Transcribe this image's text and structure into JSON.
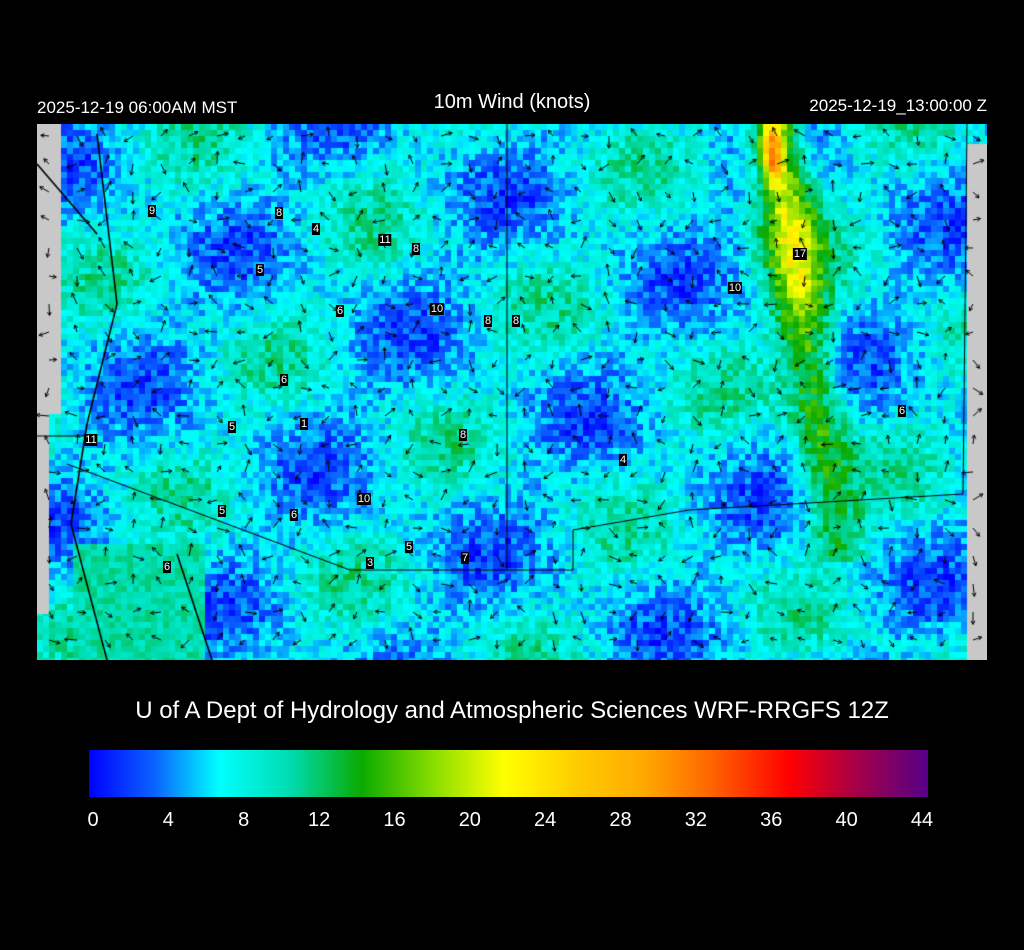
{
  "header": {
    "local_time": "2025-12-19 06:00AM MST",
    "title": "10m Wind (knots)",
    "valid_time": "2025-12-19_13:00:00 Z"
  },
  "footer": "U of A Dept of Hydrology and Atmospheric Sciences WRF-RRGFS 12Z",
  "colorbar": {
    "ticks": [
      "0",
      "4",
      "8",
      "12",
      "16",
      "20",
      "24",
      "28",
      "32",
      "36",
      "40",
      "44"
    ],
    "range": [
      0,
      44
    ],
    "colors": [
      "#0000ff",
      "#00ffff",
      "#0aaa00",
      "#ffff00",
      "#ffaa00",
      "#ff0000",
      "#550088"
    ]
  },
  "stations": [
    "9",
    "8",
    "4",
    "11",
    "8",
    "5",
    "6",
    "10",
    "8",
    "8",
    "17",
    "10",
    "6",
    "5",
    "1",
    "11",
    "8",
    "4",
    "6",
    "10",
    "5",
    "6",
    "5",
    "3",
    "7",
    "6"
  ],
  "chart_data": {
    "type": "heatmap",
    "title": "10m Wind (knots)",
    "colorbar_range": [
      0,
      44
    ],
    "colorbar_ticks": [
      0,
      4,
      8,
      12,
      16,
      20,
      24,
      28,
      32,
      36,
      40,
      44
    ],
    "station_values": [
      9,
      8,
      4,
      11,
      8,
      5,
      6,
      10,
      8,
      8,
      17,
      10,
      6,
      5,
      1,
      11,
      8,
      4,
      6,
      10,
      5,
      6,
      5,
      3,
      7,
      6
    ]
  }
}
